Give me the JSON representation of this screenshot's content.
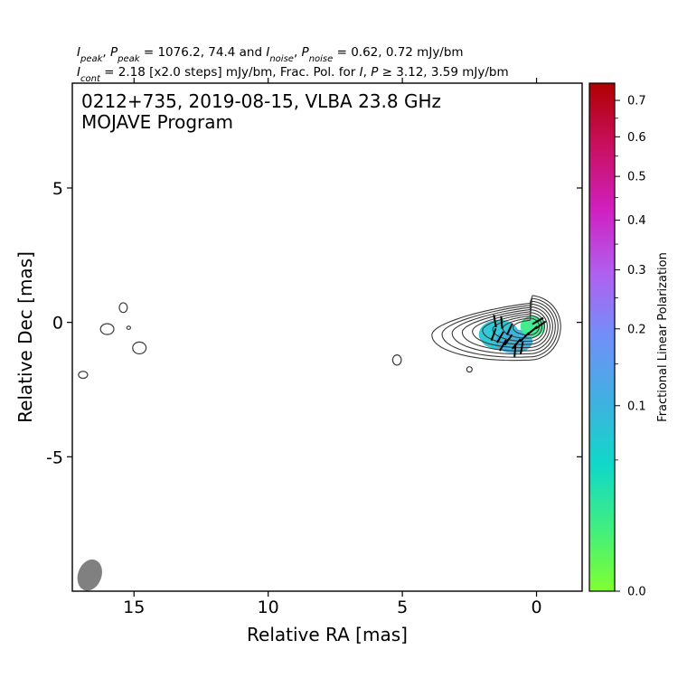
{
  "header": {
    "line1_parts": [
      "I",
      "peak",
      ", ",
      "P",
      "peak",
      " = 1076.2, 74.4 and ",
      "I",
      "noise",
      ", ",
      "P",
      "noise",
      " = 0.62, 0.72 mJy/bm"
    ],
    "line2_parts": [
      "I",
      "cont",
      " = 2.18 [x2.0 steps] mJy/bm, Frac. Pol. for ",
      "I",
      ", ",
      "P",
      " ≥ 3.12, 3.59 mJy/bm"
    ]
  },
  "chart_data": {
    "type": "contour",
    "title_line1": "0212+735, 2019-08-15, VLBA 23.8 GHz",
    "title_line2": "MOJAVE Program",
    "xlabel": "Relative RA [mas]",
    "ylabel": "Relative Dec [mas]",
    "xlim": [
      17.3,
      -1.7
    ],
    "ylim": [
      -10,
      8.9
    ],
    "x_ticks": [
      15,
      10,
      5,
      0
    ],
    "y_ticks": [
      5,
      0,
      -5
    ],
    "y_tick_labels": [
      "5",
      "0",
      "-5"
    ],
    "colorbar": {
      "label": "Fractional Linear Polarization",
      "range": [
        0.0,
        0.75
      ],
      "scale": "sqrt",
      "ticks": [
        0.0,
        0.1,
        0.2,
        0.3,
        0.4,
        0.5,
        0.6,
        0.7
      ],
      "tick_labels": [
        "0.0",
        "0.1",
        "0.2",
        "0.3",
        "0.4",
        "0.5",
        "0.6",
        "0.7"
      ],
      "colors": [
        "#80ff30",
        "#40ee80",
        "#10d8c8",
        "#40b0e0",
        "#7090f8",
        "#b060f0",
        "#d020c0",
        "#c81060",
        "#b00000"
      ]
    },
    "core": {
      "ra": 0.25,
      "dec": -0.15
    },
    "contour_levels_count": 9,
    "isolated_blobs": [
      {
        "ra": 15.4,
        "dec": 0.55,
        "rx": 0.15,
        "ry": 0.18
      },
      {
        "ra": 16.0,
        "dec": -0.25,
        "rx": 0.25,
        "ry": 0.2
      },
      {
        "ra": 15.2,
        "dec": -0.2,
        "rx": 0.07,
        "ry": 0.06
      },
      {
        "ra": 14.8,
        "dec": -0.95,
        "rx": 0.25,
        "ry": 0.22
      },
      {
        "ra": 16.9,
        "dec": -1.95,
        "rx": 0.17,
        "ry": 0.13
      },
      {
        "ra": 5.2,
        "dec": -1.4,
        "rx": 0.16,
        "ry": 0.19
      },
      {
        "ra": 2.5,
        "dec": -1.75,
        "rx": 0.1,
        "ry": 0.1
      }
    ],
    "beam": {
      "ra": 16.65,
      "dec": -9.4,
      "major": 0.58,
      "minor": 0.42,
      "pa_deg": 20
    },
    "fracpol_regions": [
      {
        "ra": 1.4,
        "dec": -0.45,
        "rx": 0.75,
        "ry": 0.55,
        "fpol": 0.07
      },
      {
        "ra": 0.85,
        "dec": -0.7,
        "rx": 0.7,
        "ry": 0.45,
        "fpol": 0.1
      },
      {
        "ra": 0.15,
        "dec": -0.15,
        "rx": 0.45,
        "ry": 0.4,
        "fpol": 0.015
      }
    ],
    "evpa_sticks": [
      {
        "ra": 1.55,
        "dec": 0.05,
        "angle_deg": 100
      },
      {
        "ra": 1.3,
        "dec": 0.0,
        "angle_deg": 95
      },
      {
        "ra": 1.6,
        "dec": -0.45,
        "angle_deg": 70
      },
      {
        "ra": 1.35,
        "dec": -0.55,
        "angle_deg": 60
      },
      {
        "ra": 1.05,
        "dec": -0.65,
        "angle_deg": 55
      },
      {
        "ra": 0.75,
        "dec": -0.8,
        "angle_deg": 50
      },
      {
        "ra": 0.55,
        "dec": -0.95,
        "angle_deg": 80
      },
      {
        "ra": 0.8,
        "dec": -1.05,
        "angle_deg": 85
      },
      {
        "ra": 0.45,
        "dec": -0.55,
        "angle_deg": 45
      },
      {
        "ra": 0.15,
        "dec": -0.3,
        "angle_deg": 40
      },
      {
        "ra": -0.05,
        "dec": 0.05,
        "angle_deg": 30
      },
      {
        "ra": -0.15,
        "dec": -0.1,
        "angle_deg": 35
      },
      {
        "ra": 1.0,
        "dec": -0.25,
        "angle_deg": 65
      },
      {
        "ra": 1.25,
        "dec": -0.85,
        "angle_deg": 60
      }
    ]
  }
}
